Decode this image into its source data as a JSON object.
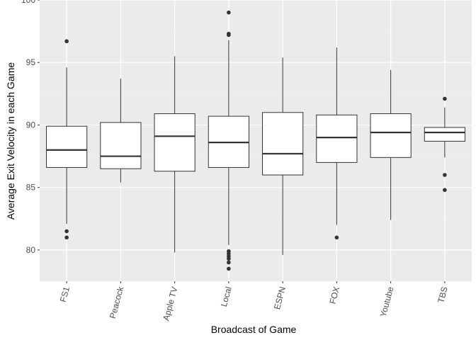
{
  "chart_data": {
    "type": "boxplot",
    "title": "",
    "xlabel": "Broadcast of Game",
    "ylabel": "Average Exit Velocity in each Game",
    "ylim": [
      77.5,
      100
    ],
    "yticks": [
      80,
      85,
      90,
      95,
      100
    ],
    "grid": true,
    "legend": "none",
    "categories": [
      "FS1",
      "Peacock",
      "Apple TV",
      "Local",
      "ESPN",
      "FOX",
      "Youtube",
      "TBS"
    ],
    "boxes": [
      {
        "category": "FS1",
        "whisker_low": 82.1,
        "q1": 86.6,
        "median": 88.0,
        "q3": 89.9,
        "whisker_high": 94.6,
        "outliers": [
          96.7,
          81.5,
          81.0
        ]
      },
      {
        "category": "Peacock",
        "whisker_low": 85.4,
        "q1": 86.5,
        "median": 87.5,
        "q3": 90.2,
        "whisker_high": 93.7,
        "outliers": []
      },
      {
        "category": "Apple TV",
        "whisker_low": 79.8,
        "q1": 86.3,
        "median": 89.1,
        "q3": 90.9,
        "whisker_high": 95.5,
        "outliers": []
      },
      {
        "category": "Local",
        "whisker_low": 80.4,
        "q1": 86.6,
        "median": 88.6,
        "q3": 90.7,
        "whisker_high": 96.8,
        "outliers": [
          99.0,
          97.3,
          97.2,
          79.9,
          79.7,
          79.5,
          79.3,
          79.0,
          78.5
        ]
      },
      {
        "category": "ESPN",
        "whisker_low": 79.6,
        "q1": 86.0,
        "median": 87.7,
        "q3": 91.0,
        "whisker_high": 95.4,
        "outliers": []
      },
      {
        "category": "FOX",
        "whisker_low": 82.0,
        "q1": 87.0,
        "median": 89.0,
        "q3": 90.8,
        "whisker_high": 96.2,
        "outliers": [
          81.0
        ]
      },
      {
        "category": "Youtube",
        "whisker_low": 82.4,
        "q1": 87.4,
        "median": 89.4,
        "q3": 90.9,
        "whisker_high": 94.4,
        "outliers": []
      },
      {
        "category": "TBS",
        "whisker_low": 87.4,
        "q1": 88.7,
        "median": 89.4,
        "q3": 89.8,
        "whisker_high": 91.4,
        "outliers": [
          92.1,
          86.0,
          84.8
        ]
      }
    ],
    "colors": {
      "panel_background": "#ebebeb",
      "grid_major": "#ffffff",
      "grid_minor": "#f2f2f2",
      "box_fill": "#ffffff",
      "box_line": "#333333",
      "outlier": "#333333"
    }
  }
}
